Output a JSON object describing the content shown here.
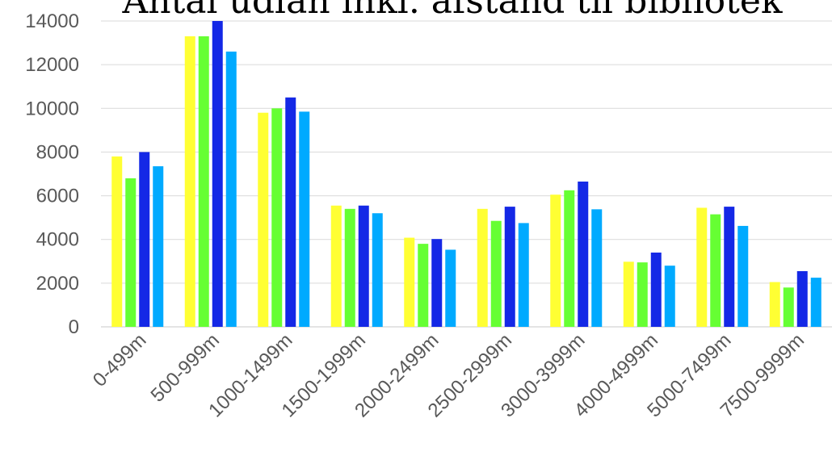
{
  "chart_data": {
    "type": "bar",
    "title": "Antal udlån inkl. afstand til bibliotek",
    "xlabel": "",
    "ylabel": "",
    "ylim": [
      0,
      14000
    ],
    "yticks": [
      0,
      2000,
      4000,
      6000,
      8000,
      10000,
      12000,
      14000
    ],
    "grid": true,
    "legend": "none",
    "categories": [
      "0-499m",
      "500-999m",
      "1000-1499m",
      "1500-1999m",
      "2000-2499m",
      "2500-2999m",
      "3000-3999m",
      "4000-4999m",
      "5000-7499m",
      "7500-9999m"
    ],
    "series": [
      {
        "color": "#ffff33",
        "values": [
          7800,
          13300,
          9800,
          5550,
          4080,
          5400,
          6050,
          2980,
          5450,
          2050
        ]
      },
      {
        "color": "#66ff33",
        "values": [
          6800,
          13300,
          10000,
          5400,
          3800,
          4850,
          6250,
          2950,
          5150,
          1800
        ]
      },
      {
        "color": "#1428e6",
        "values": [
          8000,
          14000,
          10500,
          5550,
          4020,
          5500,
          6650,
          3400,
          5500,
          2550
        ]
      },
      {
        "color": "#00aaff",
        "values": [
          7350,
          12600,
          9850,
          5200,
          3530,
          4750,
          5380,
          2800,
          4620,
          2250
        ]
      }
    ]
  }
}
